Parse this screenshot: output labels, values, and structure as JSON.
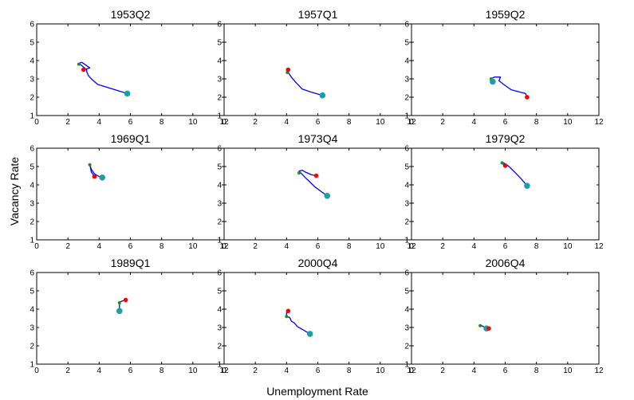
{
  "figure": {
    "ylabel": "Vacancy Rate",
    "xlabel": "Unemployment Rate"
  },
  "colors": {
    "path": "#0000ff",
    "start_marker": "#1aa0a8",
    "end_marker": "#ff0000",
    "mid_marker": "#228b22",
    "axis": "#000000"
  },
  "chart_data": [
    {
      "type": "line",
      "title": "1953Q2",
      "xlim": [
        0,
        12
      ],
      "ylim": [
        1,
        6
      ],
      "xticks": [
        0,
        2,
        4,
        6,
        8,
        10,
        12
      ],
      "yticks": [
        1,
        2,
        3,
        4,
        5,
        6
      ],
      "series": [
        {
          "x": [
            5.8,
            3.9,
            3.5,
            3.3,
            3.2,
            3.2,
            2.7,
            2.9,
            3.4,
            3.0
          ],
          "y": [
            2.2,
            2.7,
            3.0,
            3.2,
            3.4,
            3.5,
            3.85,
            3.9,
            3.6,
            3.5
          ]
        }
      ],
      "start": [
        5.8,
        2.2
      ],
      "end": [
        3.0,
        3.5
      ],
      "mid": [
        2.7,
        3.8
      ]
    },
    {
      "type": "line",
      "title": "1957Q1",
      "xlim": [
        0,
        12
      ],
      "ylim": [
        1,
        6
      ],
      "xticks": [
        0,
        2,
        4,
        6,
        8,
        10,
        12
      ],
      "yticks": [
        1,
        2,
        3,
        4,
        5,
        6
      ],
      "series": [
        {
          "x": [
            6.3,
            5.5,
            5.0,
            4.6,
            4.3,
            4.15,
            4.1,
            4.1
          ],
          "y": [
            2.1,
            2.3,
            2.45,
            2.8,
            3.1,
            3.3,
            3.4,
            3.5
          ]
        }
      ],
      "start": [
        6.3,
        2.1
      ],
      "end": [
        4.1,
        3.5
      ],
      "mid": [
        4.05,
        3.35
      ]
    },
    {
      "type": "line",
      "title": "1959Q2",
      "xlim": [
        0,
        12
      ],
      "ylim": [
        1,
        6
      ],
      "xticks": [
        0,
        2,
        4,
        6,
        8,
        10,
        12
      ],
      "yticks": [
        1,
        2,
        3,
        4,
        5,
        6
      ],
      "series": [
        {
          "x": [
            5.2,
            5.1,
            5.3,
            5.7,
            5.6,
            5.9,
            6.4,
            7.3,
            7.4
          ],
          "y": [
            2.85,
            3.0,
            3.1,
            3.1,
            2.9,
            2.7,
            2.4,
            2.2,
            2.0
          ]
        }
      ],
      "start": [
        5.2,
        2.85
      ],
      "end": [
        7.4,
        2.0
      ],
      "mid": [
        5.1,
        3.0
      ]
    },
    {
      "type": "line",
      "title": "1969Q1",
      "xlim": [
        0,
        12
      ],
      "ylim": [
        1,
        6
      ],
      "xticks": [
        0,
        2,
        4,
        6,
        8,
        10,
        12
      ],
      "yticks": [
        1,
        2,
        3,
        4,
        5,
        6
      ],
      "series": [
        {
          "x": [
            4.2,
            4.0,
            3.7,
            3.5,
            3.4,
            3.5,
            3.7
          ],
          "y": [
            4.4,
            4.45,
            4.6,
            4.85,
            5.1,
            4.7,
            4.45
          ]
        }
      ],
      "start": [
        4.2,
        4.4
      ],
      "end": [
        3.7,
        4.45
      ],
      "mid": [
        3.4,
        5.1
      ]
    },
    {
      "type": "line",
      "title": "1973Q4",
      "xlim": [
        0,
        12
      ],
      "ylim": [
        1,
        6
      ],
      "xticks": [
        0,
        2,
        4,
        6,
        8,
        10,
        12
      ],
      "yticks": [
        1,
        2,
        3,
        4,
        5,
        6
      ],
      "series": [
        {
          "x": [
            6.6,
            6.2,
            5.8,
            5.5,
            5.2,
            4.8,
            5.0,
            5.2,
            5.6,
            5.9
          ],
          "y": [
            3.4,
            3.65,
            3.9,
            4.15,
            4.4,
            4.75,
            4.8,
            4.7,
            4.55,
            4.5
          ]
        }
      ],
      "start": [
        6.6,
        3.4
      ],
      "end": [
        5.9,
        4.5
      ],
      "mid": [
        4.8,
        4.65
      ]
    },
    {
      "type": "line",
      "title": "1979Q2",
      "xlim": [
        0,
        12
      ],
      "ylim": [
        1,
        6
      ],
      "xticks": [
        0,
        2,
        4,
        6,
        8,
        10,
        12
      ],
      "yticks": [
        1,
        2,
        3,
        4,
        5,
        6
      ],
      "series": [
        {
          "x": [
            7.4,
            7.0,
            6.6,
            6.3,
            6.1,
            5.9,
            5.8,
            5.95
          ],
          "y": [
            3.95,
            4.35,
            4.7,
            4.95,
            5.1,
            5.2,
            5.2,
            5.05
          ]
        }
      ],
      "start": [
        7.4,
        3.95
      ],
      "end": [
        6.0,
        5.05
      ],
      "mid": [
        5.8,
        5.2
      ]
    },
    {
      "type": "line",
      "title": "1989Q1",
      "xlim": [
        0,
        12
      ],
      "ylim": [
        1,
        6
      ],
      "xticks": [
        0,
        2,
        4,
        6,
        8,
        10,
        12
      ],
      "yticks": [
        1,
        2,
        3,
        4,
        5,
        6
      ],
      "series": [
        {
          "x": [
            5.3,
            5.3,
            5.3,
            5.35,
            5.5,
            5.7
          ],
          "y": [
            3.9,
            4.1,
            4.3,
            4.4,
            4.45,
            4.5
          ]
        }
      ],
      "start": [
        5.3,
        3.9
      ],
      "end": [
        5.7,
        4.5
      ],
      "mid": [
        5.3,
        4.35
      ]
    },
    {
      "type": "line",
      "title": "2000Q4",
      "xlim": [
        0,
        12
      ],
      "ylim": [
        1,
        6
      ],
      "xticks": [
        0,
        2,
        4,
        6,
        8,
        10,
        12
      ],
      "yticks": [
        1,
        2,
        3,
        4,
        5,
        6
      ],
      "series": [
        {
          "x": [
            5.5,
            5.1,
            4.7,
            4.5,
            4.3,
            4.2,
            4.0,
            4.0,
            4.1
          ],
          "y": [
            2.65,
            2.85,
            3.05,
            3.25,
            3.35,
            3.55,
            3.6,
            3.8,
            3.9
          ]
        }
      ],
      "start": [
        5.5,
        2.65
      ],
      "end": [
        4.1,
        3.9
      ],
      "mid": [
        4.0,
        3.6
      ]
    },
    {
      "type": "line",
      "title": "2006Q4",
      "xlim": [
        0,
        12
      ],
      "ylim": [
        1,
        6
      ],
      "xticks": [
        0,
        2,
        4,
        6,
        8,
        10,
        12
      ],
      "yticks": [
        1,
        2,
        3,
        4,
        5,
        6
      ],
      "series": [
        {
          "x": [
            4.8,
            4.6,
            4.4,
            4.5,
            4.7,
            4.95
          ],
          "y": [
            2.95,
            3.05,
            3.15,
            3.1,
            3.0,
            2.95
          ]
        }
      ],
      "start": [
        4.8,
        2.95
      ],
      "end": [
        4.95,
        2.95
      ],
      "mid": [
        4.4,
        3.1
      ]
    }
  ]
}
